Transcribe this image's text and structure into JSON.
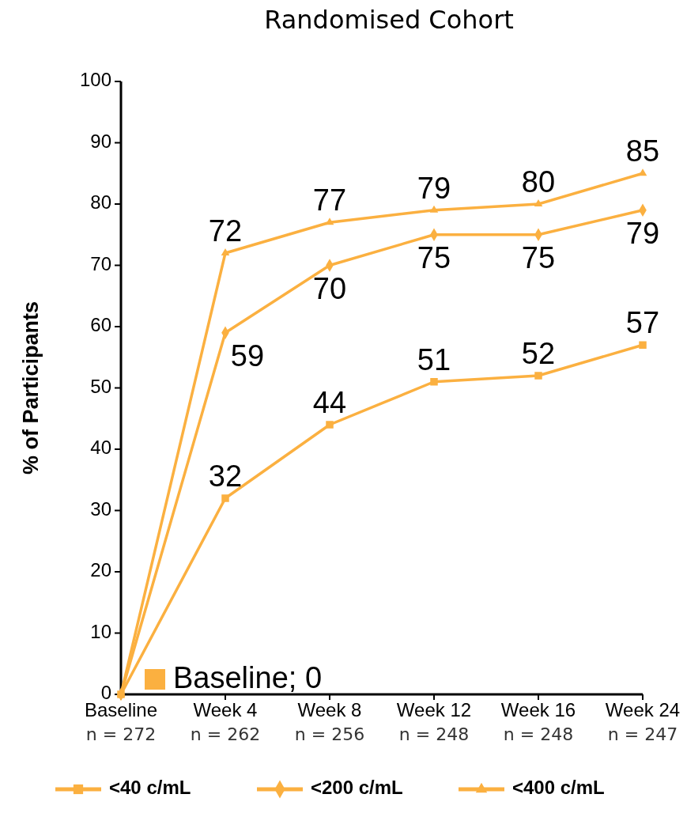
{
  "chart_data": {
    "type": "line",
    "title": "Randomised Cohort",
    "ylabel": "% of Participants",
    "categories": [
      "Baseline",
      "Week 4",
      "Week 8",
      "Week 12",
      "Week 16",
      "Week 24"
    ],
    "series": [
      {
        "name": "<40 c/mL",
        "color": "#fbb040",
        "marker": "square",
        "values": [
          0,
          32,
          44,
          51,
          52,
          57
        ],
        "value_labels": [
          null,
          "32",
          "44",
          "51",
          "52",
          "57"
        ]
      },
      {
        "name": "<200 c/mL",
        "color": "#fbb040",
        "marker": "diamond",
        "values": [
          0,
          59,
          70,
          75,
          75,
          79
        ],
        "value_labels": [
          null,
          "59",
          "70",
          "75",
          "75",
          "79"
        ]
      },
      {
        "name": "<400 c/mL",
        "color": "#fbb040",
        "marker": "triangle",
        "values": [
          0,
          72,
          77,
          79,
          80,
          85
        ],
        "value_labels": [
          null,
          "72",
          "77",
          "79",
          "80",
          "85"
        ]
      }
    ],
    "ylim": [
      0,
      100
    ],
    "yticks": [
      0,
      10,
      20,
      30,
      40,
      50,
      60,
      70,
      80,
      90,
      100
    ],
    "grid": false,
    "legend": "bottom",
    "line_style": "solid",
    "annotations": [
      {
        "text": "Baseline; 0",
        "x": "Baseline",
        "y": 0
      },
      "n = 272",
      "n = 262",
      "n = 256",
      "n = 248",
      "n = 248",
      "n = 247"
    ]
  }
}
